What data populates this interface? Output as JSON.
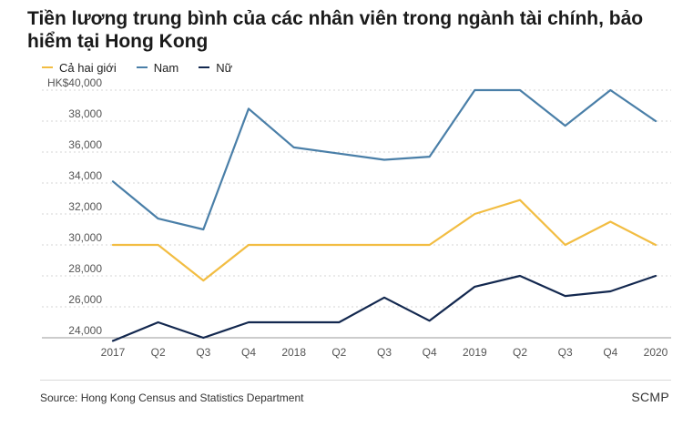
{
  "title": "Tiền lương trung bình của các nhân viên trong ngành tài chính, bảo hiểm tại Hong Kong",
  "source": "Source: Hong Kong Census and Statistics Department",
  "brand": "SCMP",
  "chart_data": {
    "type": "line",
    "categories": [
      "2017",
      "Q2",
      "Q3",
      "Q4",
      "2018",
      "Q2",
      "Q3",
      "Q4",
      "2019",
      "Q2",
      "Q3",
      "Q4",
      "2020"
    ],
    "ylim": [
      24000,
      40000
    ],
    "yticks": [
      24000,
      26000,
      28000,
      30000,
      32000,
      34000,
      36000,
      38000,
      40000
    ],
    "ytick_labels": [
      "24,000",
      "26,000",
      "28,000",
      "30,000",
      "32,000",
      "34,000",
      "36,000",
      "38,000",
      "HK$40,000"
    ],
    "grid": true,
    "legend": "top-left",
    "series": [
      {
        "name": "Cả hai giới",
        "color": "#f2bd42",
        "values": [
          30000,
          30000,
          27700,
          30000,
          30000,
          30000,
          30000,
          30000,
          32000,
          32900,
          30000,
          31500,
          30000
        ]
      },
      {
        "name": "Nam",
        "color": "#4a7fa8",
        "values": [
          34100,
          31700,
          31000,
          38800,
          36300,
          35900,
          35500,
          35700,
          40000,
          40000,
          37700,
          40000,
          38000
        ]
      },
      {
        "name": "Nữ",
        "color": "#13284f",
        "values": [
          23800,
          25000,
          24000,
          25000,
          25000,
          25000,
          26600,
          25100,
          27300,
          28000,
          26700,
          27000,
          28000
        ]
      }
    ]
  }
}
